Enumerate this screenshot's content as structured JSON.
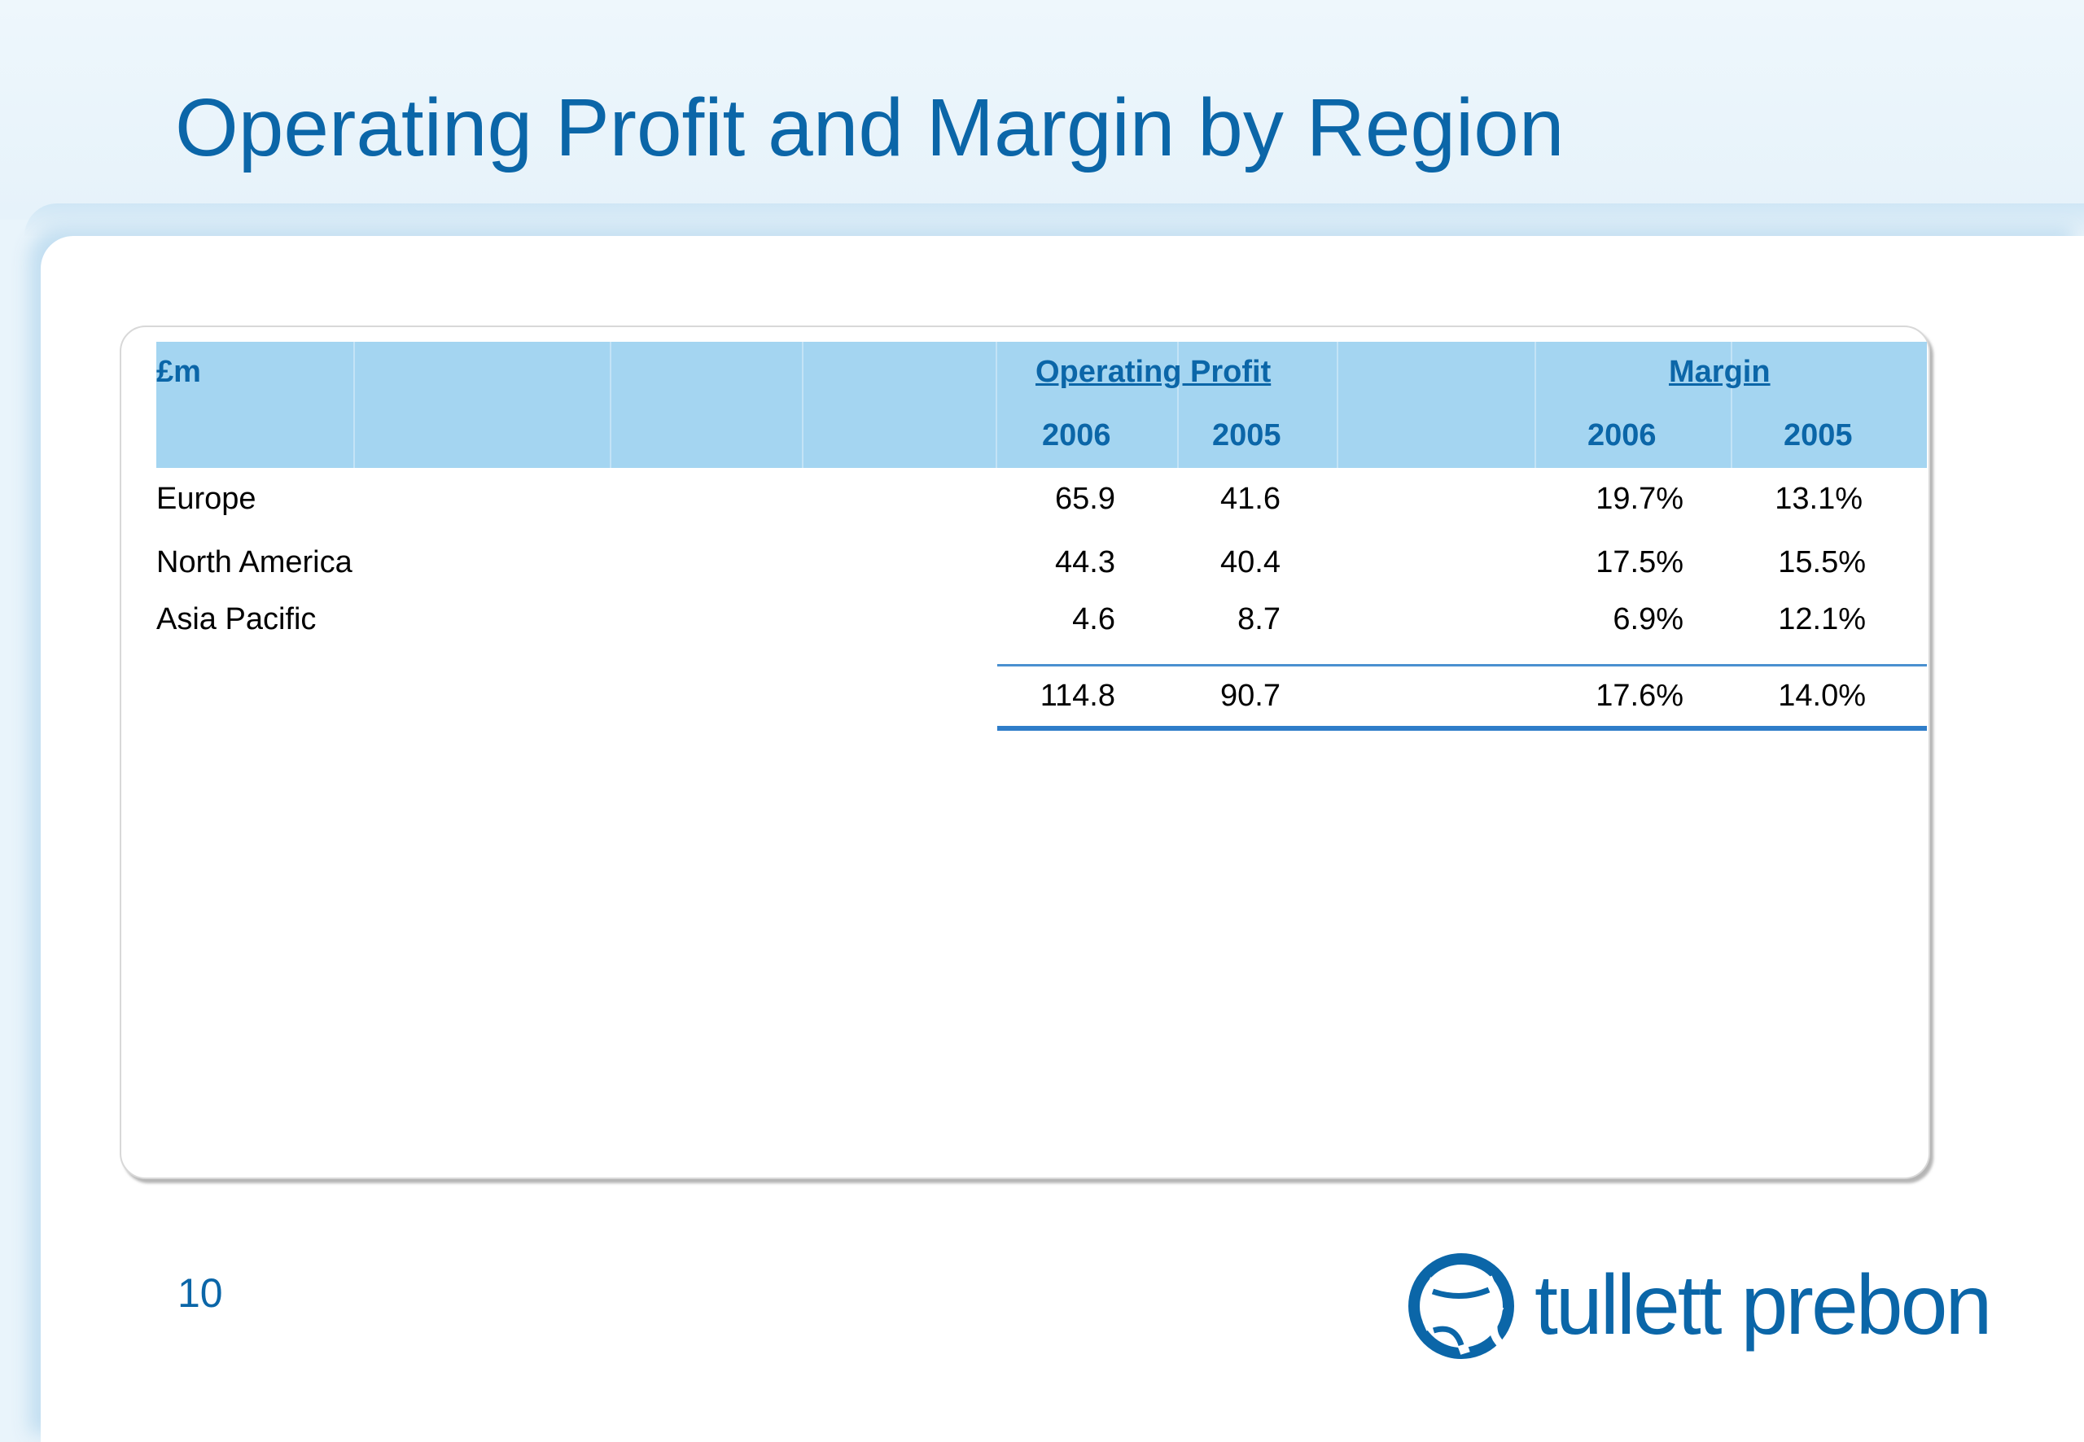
{
  "slide": {
    "title": "Operating Profit and Margin by Region",
    "page_number": "10"
  },
  "table": {
    "unit_label": "£m",
    "groups": {
      "operating_profit": "Operating Profit",
      "margin": "Margin"
    },
    "years": {
      "op_2006": "2006",
      "op_2005": "2005",
      "m_2006": "2006",
      "m_2005": "2005"
    },
    "rows": [
      {
        "region": "Europe",
        "op_2006": "65.9",
        "op_2005": "41.6",
        "m_2006": "19.7%",
        "m_2005": "13.1%"
      },
      {
        "region": "North America",
        "op_2006": "44.3",
        "op_2005": "40.4",
        "m_2006": "17.5%",
        "m_2005": "15.5%"
      },
      {
        "region": "Asia Pacific",
        "op_2006": "4.6",
        "op_2005": "8.7",
        "m_2006": "6.9%",
        "m_2005": "12.1%"
      }
    ],
    "total": {
      "op_2006": "114.8",
      "op_2005": "90.7",
      "m_2006": "17.6%",
      "m_2005": "14.0%"
    }
  },
  "logo": {
    "text": "tullett prebon",
    "icon": "swirl-logo-icon",
    "color": "#0b66a8"
  }
}
